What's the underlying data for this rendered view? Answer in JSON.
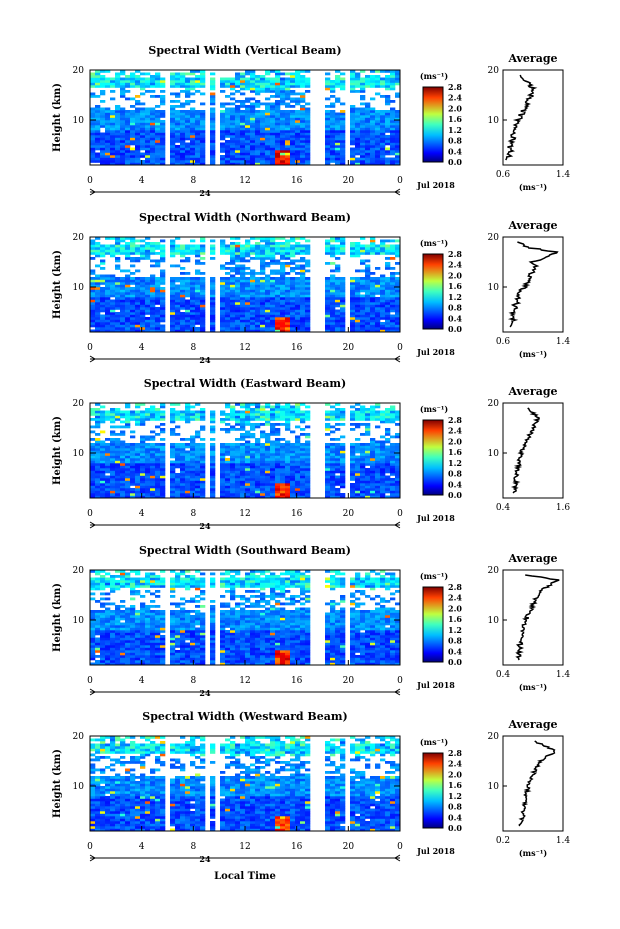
{
  "figure": {
    "xlabel": "Local Time",
    "date_label": "Jul 2018",
    "day_marker": "24",
    "panel_titles": [
      "Spectral Width (Vertical Beam)",
      "Spectral Width (Northward Beam)",
      "Spectral Width (Eastward Beam)",
      "Spectral Width (Southward Beam)",
      "Spectral Width (Westward Beam)"
    ]
  },
  "chart_data": [
    {
      "type": "heatmap",
      "title": "Spectral Width (Vertical Beam)",
      "ylabel": "Height (km)",
      "xlim": [
        0,
        24
      ],
      "ylim": [
        1,
        20
      ],
      "x_ticks": [
        "0",
        "4",
        "8",
        "12",
        "16",
        "20",
        "0"
      ],
      "y_ticks": [
        "10",
        "20"
      ],
      "colorbar": {
        "unit": "(ms⁻¹)",
        "min": 0,
        "max": 2.8,
        "ticks": [
          "0.0",
          "0.4",
          "0.8",
          "1.2",
          "1.6",
          "2.0",
          "2.4",
          "2.8"
        ]
      },
      "avg_profile": {
        "title": "Average",
        "xlabel": "(ms⁻¹)",
        "xlim": [
          0.6,
          1.4
        ],
        "x_ticks": [
          "0.6",
          "1.4"
        ],
        "y_ticks": [
          "10",
          "20"
        ],
        "heights": [
          2,
          3,
          4,
          5,
          6,
          7,
          8,
          9,
          10,
          11,
          12,
          13,
          14,
          15,
          16,
          17,
          18,
          19
        ],
        "values": [
          0.66,
          0.68,
          0.7,
          0.69,
          0.72,
          0.74,
          0.76,
          0.78,
          0.8,
          0.84,
          0.88,
          0.9,
          0.94,
          0.98,
          1.0,
          0.96,
          0.88,
          0.84
        ]
      }
    },
    {
      "type": "heatmap",
      "title": "Spectral Width (Northward Beam)",
      "ylabel": "Height (km)",
      "xlim": [
        0,
        24
      ],
      "ylim": [
        1,
        20
      ],
      "x_ticks": [
        "0",
        "4",
        "8",
        "12",
        "16",
        "20",
        "0"
      ],
      "y_ticks": [
        "10",
        "20"
      ],
      "colorbar": {
        "unit": "(ms⁻¹)",
        "min": 0,
        "max": 2.8,
        "ticks": [
          "0.0",
          "0.4",
          "0.8",
          "1.2",
          "1.6",
          "2.0",
          "2.4",
          "2.8"
        ]
      },
      "avg_profile": {
        "title": "Average",
        "xlabel": "(ms⁻¹)",
        "xlim": [
          0.6,
          1.4
        ],
        "x_ticks": [
          "0.6",
          "1.4"
        ],
        "y_ticks": [
          "10",
          "20"
        ],
        "heights": [
          2,
          3,
          4,
          5,
          6,
          7,
          8,
          9,
          10,
          11,
          12,
          13,
          14,
          15,
          16,
          17,
          18,
          19
        ],
        "values": [
          0.7,
          0.72,
          0.74,
          0.73,
          0.76,
          0.78,
          0.8,
          0.84,
          0.88,
          0.92,
          0.96,
          0.98,
          1.05,
          1.0,
          1.18,
          1.3,
          0.9,
          0.8
        ]
      }
    },
    {
      "type": "heatmap",
      "title": "Spectral Width (Eastward Beam)",
      "ylabel": "Height (km)",
      "xlim": [
        0,
        24
      ],
      "ylim": [
        1,
        20
      ],
      "x_ticks": [
        "0",
        "4",
        "8",
        "12",
        "16",
        "20",
        "0"
      ],
      "y_ticks": [
        "10",
        "20"
      ],
      "colorbar": {
        "unit": "(ms⁻¹)",
        "min": 0,
        "max": 2.8,
        "ticks": [
          "0.0",
          "0.4",
          "0.8",
          "1.2",
          "1.6",
          "2.0",
          "2.4",
          "2.8"
        ]
      },
      "avg_profile": {
        "title": "Average",
        "xlabel": "",
        "xlim": [
          0.4,
          1.6
        ],
        "x_ticks": [
          "0.4",
          "1.6"
        ],
        "y_ticks": [
          "10",
          "20"
        ],
        "heights": [
          2,
          3,
          4,
          5,
          6,
          7,
          8,
          9,
          10,
          11,
          12,
          13,
          14,
          15,
          16,
          17,
          18,
          19
        ],
        "values": [
          0.62,
          0.64,
          0.66,
          0.66,
          0.68,
          0.7,
          0.72,
          0.74,
          0.76,
          0.8,
          0.84,
          0.9,
          0.96,
          1.0,
          1.05,
          1.1,
          1.0,
          0.86
        ]
      }
    },
    {
      "type": "heatmap",
      "title": "Spectral Width (Southward Beam)",
      "ylabel": "Height (km)",
      "xlim": [
        0,
        24
      ],
      "ylim": [
        1,
        20
      ],
      "x_ticks": [
        "0",
        "4",
        "8",
        "12",
        "16",
        "20",
        "0"
      ],
      "y_ticks": [
        "10",
        "20"
      ],
      "colorbar": {
        "unit": "(ms⁻¹)",
        "min": 0,
        "max": 2.8,
        "ticks": [
          "0.0",
          "0.4",
          "0.8",
          "1.2",
          "1.6",
          "2.0",
          "2.4",
          "2.8"
        ]
      },
      "avg_profile": {
        "title": "Average",
        "xlabel": "(ms⁻¹)",
        "xlim": [
          0.4,
          1.4
        ],
        "x_ticks": [
          "0.4",
          "1.4"
        ],
        "y_ticks": [
          "10",
          "20"
        ],
        "heights": [
          2,
          3,
          4,
          5,
          6,
          7,
          8,
          9,
          10,
          11,
          12,
          13,
          14,
          15,
          16,
          17,
          18,
          19
        ],
        "values": [
          0.64,
          0.66,
          0.68,
          0.68,
          0.7,
          0.72,
          0.74,
          0.76,
          0.78,
          0.82,
          0.86,
          0.9,
          0.94,
          0.98,
          1.04,
          1.2,
          1.3,
          0.8
        ]
      }
    },
    {
      "type": "heatmap",
      "title": "Spectral Width (Westward Beam)",
      "ylabel": "Height (km)",
      "xlim": [
        0,
        24
      ],
      "ylim": [
        1,
        20
      ],
      "x_ticks": [
        "0",
        "4",
        "8",
        "12",
        "16",
        "20",
        "0"
      ],
      "y_ticks": [
        "10",
        "20"
      ],
      "colorbar": {
        "unit": "(ms⁻¹)",
        "min": 0,
        "max": 2.8,
        "ticks": [
          "0.0",
          "0.4",
          "0.8",
          "1.2",
          "1.6",
          "2.0",
          "2.4",
          "2.8"
        ]
      },
      "avg_profile": {
        "title": "Average",
        "xlabel": "(ms⁻¹)",
        "xlim": [
          0.2,
          1.4
        ],
        "x_ticks": [
          "0.2",
          "1.4"
        ],
        "y_ticks": [
          "10",
          "20"
        ],
        "heights": [
          2,
          3,
          4,
          5,
          6,
          7,
          8,
          9,
          10,
          11,
          12,
          13,
          14,
          15,
          16,
          17,
          18,
          19
        ],
        "values": [
          0.55,
          0.58,
          0.6,
          0.6,
          0.62,
          0.64,
          0.66,
          0.68,
          0.7,
          0.74,
          0.78,
          0.84,
          0.9,
          0.96,
          1.1,
          1.25,
          1.05,
          0.8
        ]
      }
    }
  ]
}
